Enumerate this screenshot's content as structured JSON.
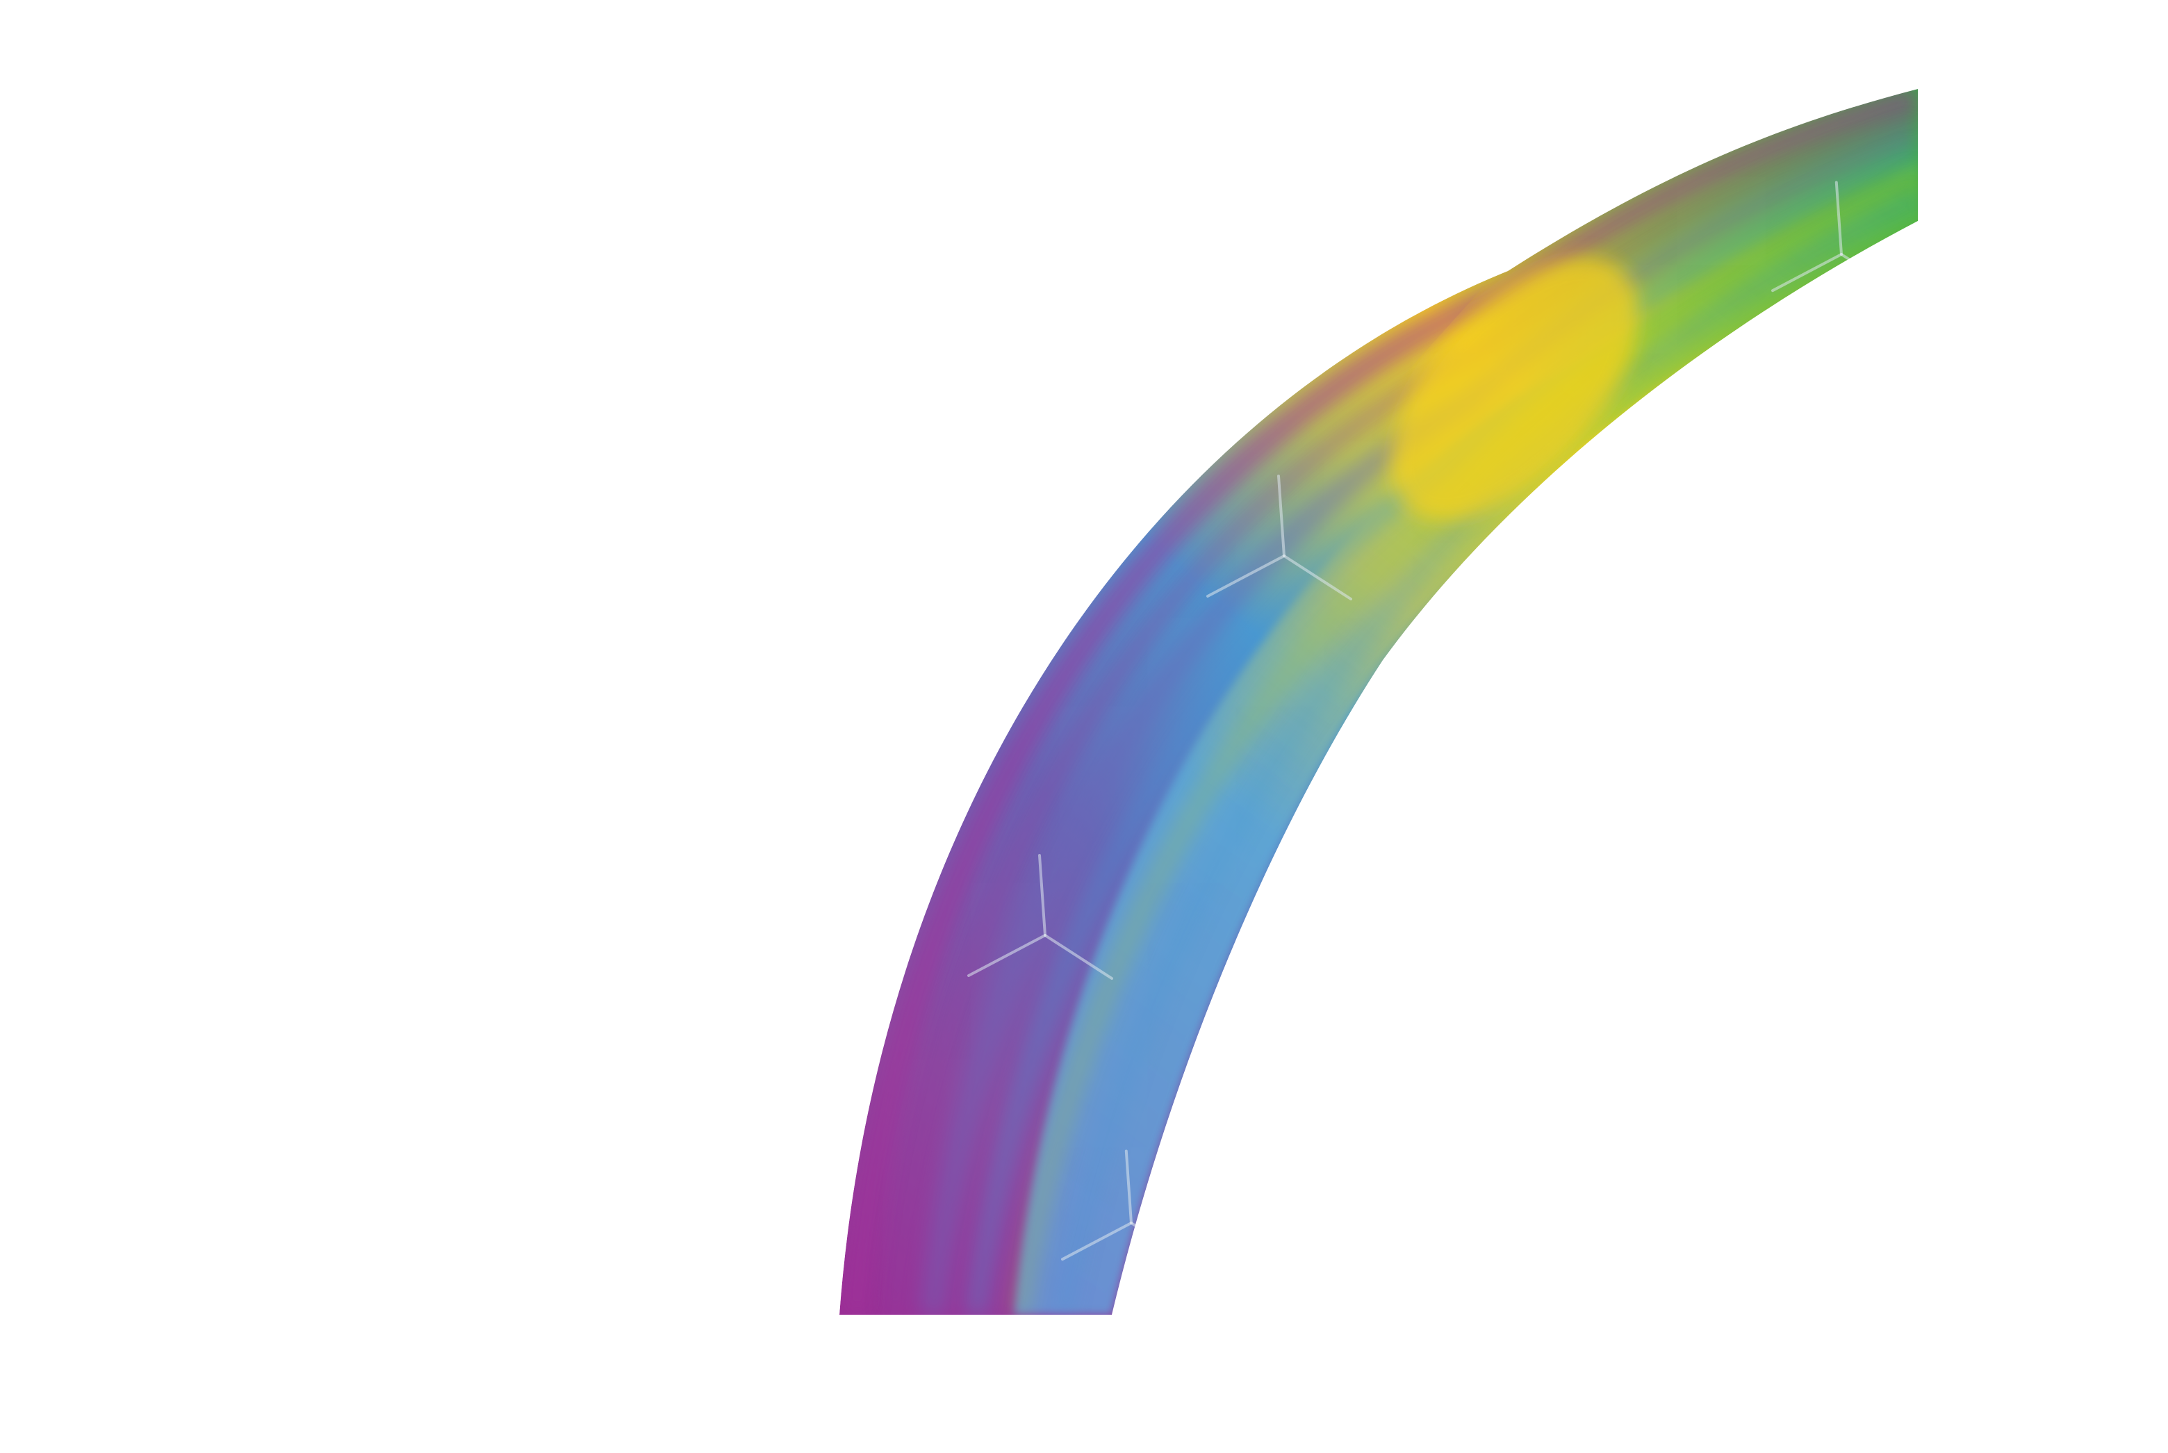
{
  "image": {
    "subject": "rainbow-arc-quarter",
    "background_color": "#ffffff",
    "band_colors": {
      "outer_top": "#3aaa48",
      "yellow": "#f6d21e",
      "lime": "#a8c83a",
      "blue": "#3f96d6",
      "indigo": "#6a66b8",
      "purple": "#8e3a9c",
      "magenta": "#a0309a"
    },
    "sparkle_color": "#dfe8ef",
    "sparkle_count": 4
  }
}
